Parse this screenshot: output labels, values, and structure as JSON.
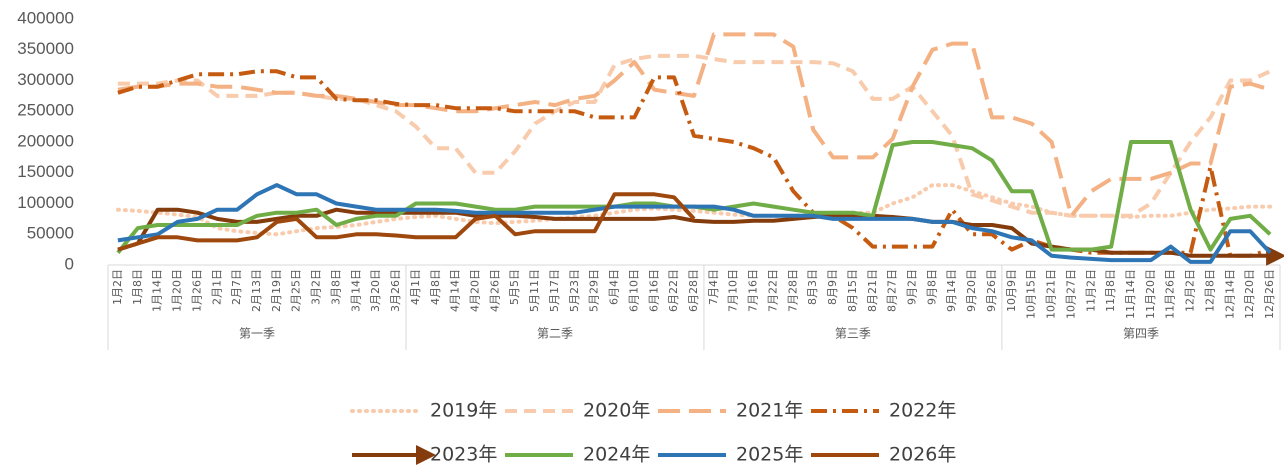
{
  "chart_data": {
    "type": "line",
    "quarters": [
      {
        "name": "第一季",
        "categories": [
          "1月2日",
          "1月8日",
          "1月14日",
          "1月20日",
          "1月26日",
          "2月1日",
          "2月7日",
          "2月13日",
          "2月19日",
          "2月25日",
          "3月2日",
          "3月8日",
          "3月14日",
          "3月20日",
          "3月26日"
        ]
      },
      {
        "name": "第二季",
        "categories": [
          "4月1日",
          "4月8日",
          "4月14日",
          "4月20日",
          "4月26日",
          "5月5日",
          "5月11日",
          "5月17日",
          "5月23日",
          "5月29日",
          "6月4日",
          "6月10日",
          "6月16日",
          "6月22日",
          "6月28日"
        ]
      },
      {
        "name": "第三季",
        "categories": [
          "7月4日",
          "7月10日",
          "7月16日",
          "7月22日",
          "7月28日",
          "8月3日",
          "8月9日",
          "8月15日",
          "8月21日",
          "8月27日",
          "9月2日",
          "9月8日",
          "9月14日",
          "9月20日",
          "9月26日"
        ]
      },
      {
        "name": "第四季",
        "categories": [
          "10月9日",
          "10月15日",
          "10月21日",
          "10月27日",
          "11月2日",
          "11月8日",
          "11月14日",
          "11月20日",
          "11月26日",
          "12月2日",
          "12月8日",
          "12月14日",
          "12月20日",
          "12月26日"
        ]
      }
    ],
    "ylim": [
      0,
      400000
    ],
    "yticks": [
      0,
      50000,
      100000,
      150000,
      200000,
      250000,
      300000,
      350000,
      400000
    ],
    "series": [
      {
        "name": "2019年",
        "color": "#f8cbad",
        "style": "dotted",
        "values": [
          90000,
          88000,
          85000,
          82000,
          78000,
          60000,
          55000,
          52000,
          50000,
          55000,
          60000,
          62000,
          65000,
          70000,
          75000,
          78000,
          80000,
          75000,
          70000,
          68000,
          70000,
          72000,
          75000,
          78000,
          80000,
          85000,
          90000,
          92000,
          90000,
          88000,
          85000,
          82000,
          80000,
          80000,
          80000,
          82000,
          85000,
          85000,
          85000,
          100000,
          110000,
          130000,
          130000,
          120000,
          110000,
          100000,
          95000,
          85000,
          80000,
          80000,
          80000,
          78000,
          80000,
          80000,
          85000,
          90000,
          92000,
          95000,
          95000
        ]
      },
      {
        "name": "2020年",
        "color": "#f8cbad",
        "style": "dashed",
        "values": [
          295000,
          295000,
          295000,
          300000,
          300000,
          275000,
          275000,
          275000,
          280000,
          280000,
          275000,
          270000,
          270000,
          260000,
          250000,
          225000,
          190000,
          190000,
          150000,
          150000,
          185000,
          230000,
          250000,
          265000,
          265000,
          325000,
          335000,
          340000,
          340000,
          340000,
          335000,
          330000,
          330000,
          330000,
          330000,
          330000,
          328000,
          315000,
          270000,
          270000,
          290000,
          250000,
          210000,
          115000,
          105000,
          95000,
          85000,
          85000,
          80000,
          80000,
          80000,
          80000,
          100000,
          150000,
          200000,
          240000,
          300000,
          300000,
          315000
        ]
      },
      {
        "name": "2021年",
        "color": "#f4b183",
        "style": "long-dash",
        "values": [
          285000,
          290000,
          290000,
          295000,
          295000,
          290000,
          290000,
          285000,
          280000,
          280000,
          275000,
          275000,
          270000,
          265000,
          260000,
          260000,
          255000,
          250000,
          250000,
          255000,
          260000,
          265000,
          260000,
          270000,
          275000,
          300000,
          330000,
          285000,
          280000,
          275000,
          375000,
          375000,
          375000,
          375000,
          355000,
          220000,
          175000,
          175000,
          175000,
          205000,
          290000,
          350000,
          360000,
          360000,
          240000,
          240000,
          230000,
          200000,
          80000,
          120000,
          140000,
          140000,
          140000,
          150000,
          165000,
          165000,
          290000,
          295000,
          285000
        ]
      },
      {
        "name": "2022年",
        "color": "#c55a11",
        "style": "dash-dot",
        "values": [
          280000,
          290000,
          290000,
          300000,
          310000,
          310000,
          310000,
          315000,
          315000,
          305000,
          305000,
          270000,
          268000,
          268000,
          262000,
          260000,
          260000,
          255000,
          255000,
          255000,
          250000,
          250000,
          250000,
          250000,
          240000,
          240000,
          240000,
          305000,
          305000,
          210000,
          205000,
          200000,
          190000,
          175000,
          120000,
          85000,
          80000,
          60000,
          30000,
          30000,
          30000,
          30000,
          90000,
          50000,
          50000,
          25000,
          40000,
          30000,
          25000,
          20000,
          20000,
          20000,
          20000,
          20000,
          20000,
          160000,
          15000,
          15000,
          25000
        ]
      },
      {
        "name": "2023年",
        "color": "#843c0c",
        "style": "arrow",
        "values": [
          25000,
          35000,
          90000,
          90000,
          85000,
          75000,
          70000,
          70000,
          75000,
          80000,
          80000,
          90000,
          85000,
          85000,
          85000,
          85000,
          85000,
          85000,
          80000,
          80000,
          80000,
          78000,
          75000,
          75000,
          75000,
          75000,
          75000,
          75000,
          78000,
          72000,
          70000,
          70000,
          72000,
          72000,
          75000,
          78000,
          80000,
          80000,
          80000,
          78000,
          75000,
          70000,
          70000,
          65000,
          65000,
          60000,
          35000,
          30000,
          25000,
          25000,
          20000,
          20000,
          20000,
          20000,
          15000,
          15000,
          15000,
          15000,
          15000
        ]
      },
      {
        "name": "2024年",
        "color": "#70ad47",
        "style": "solid",
        "values": [
          20000,
          60000,
          65000,
          65000,
          65000,
          65000,
          65000,
          80000,
          85000,
          85000,
          90000,
          65000,
          75000,
          80000,
          80000,
          100000,
          100000,
          100000,
          95000,
          90000,
          90000,
          95000,
          95000,
          95000,
          95000,
          95000,
          100000,
          100000,
          95000,
          95000,
          90000,
          95000,
          100000,
          95000,
          90000,
          85000,
          85000,
          85000,
          80000,
          195000,
          200000,
          200000,
          195000,
          190000,
          170000,
          120000,
          120000,
          25000,
          25000,
          25000,
          30000,
          200000,
          200000,
          200000,
          90000,
          25000,
          75000,
          80000,
          50000
        ]
      },
      {
        "name": "2025年",
        "color": "#2e75b6",
        "style": "solid",
        "values": [
          40000,
          45000,
          50000,
          70000,
          75000,
          90000,
          90000,
          115000,
          130000,
          115000,
          115000,
          100000,
          95000,
          90000,
          90000,
          90000,
          90000,
          88000,
          85000,
          85000,
          85000,
          85000,
          85000,
          85000,
          90000,
          95000,
          95000,
          95000,
          95000,
          95000,
          95000,
          90000,
          80000,
          80000,
          80000,
          80000,
          75000,
          75000,
          75000,
          75000,
          75000,
          70000,
          70000,
          60000,
          55000,
          45000,
          40000,
          15000,
          12000,
          10000,
          8000,
          8000,
          8000,
          30000,
          5000,
          5000,
          55000,
          55000,
          20000
        ]
      },
      {
        "name": "2026年",
        "color": "#9e480e",
        "style": "solid",
        "values": [
          25000,
          35000,
          45000,
          45000,
          40000,
          40000,
          40000,
          45000,
          70000,
          75000,
          45000,
          45000,
          50000,
          50000,
          48000,
          45000,
          45000,
          45000,
          75000,
          80000,
          50000,
          55000,
          55000,
          55000,
          55000,
          115000,
          115000,
          115000,
          110000,
          75000,
          null,
          null,
          null,
          null,
          null,
          null,
          null,
          null,
          null,
          null,
          null,
          null,
          null,
          null,
          null,
          null,
          null,
          null,
          null,
          null,
          null,
          null,
          null,
          null,
          null,
          null,
          null,
          null,
          null
        ]
      }
    ]
  }
}
